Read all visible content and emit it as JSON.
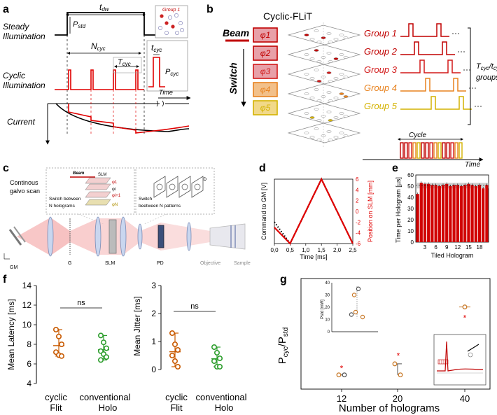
{
  "panels": {
    "a": {
      "letter": "a",
      "steady_label": [
        "Steady",
        "Illumination"
      ],
      "cyclic_label": [
        "Cyclic",
        "Illumination"
      ],
      "current_label": "Current",
      "t_dw": "t_dw",
      "p_std": "P_std",
      "n_cyc": "N_cyc",
      "t_cyc_big": "T_cyc",
      "t_cyc_small": "t_cyc",
      "p_cyc": "P_cyc",
      "time": "Time",
      "group1": "Group 1"
    },
    "b": {
      "letter": "b",
      "title": "Cyclic-FLiT",
      "beam": "Beam",
      "switch": "Switch",
      "phases": [
        "φ1",
        "φ2",
        "φ3",
        "φ4",
        "φ5"
      ],
      "groups": [
        "Group 1",
        "Group 2",
        "Group 3",
        "Group 4",
        "Group 5"
      ],
      "group_colors": [
        "#c00000",
        "#c00000",
        "#d21919",
        "#e8821e",
        "#d4b200"
      ],
      "bracket_label": [
        "T_cyc/t_cyc",
        "groups"
      ],
      "cycle": "Cycle",
      "time": "Time"
    },
    "c": {
      "letter": "c",
      "galvo": [
        "Continous",
        "galvo scan"
      ],
      "beam": "Beam",
      "slm": "SLM",
      "switch_holo": [
        "Switch between",
        "N holograms"
      ],
      "switch_pat": [
        "Switch",
        "beetween N patterns"
      ],
      "pd": "PD",
      "phi": [
        "φ1",
        "φi",
        "φi+1",
        "φN"
      ],
      "optics": [
        "GM",
        "G",
        "SLM",
        "PD",
        "Objective",
        "Sample"
      ]
    },
    "d": {
      "letter": "d",
      "ylabel_left": "Command to GM [V]",
      "ylabel_right": "Position on SLM [mm]",
      "xlabel": "Time [ms]",
      "x_ticks": [
        "0,0",
        "0,5",
        "1,0",
        "1,5",
        "2,0",
        "2,5"
      ],
      "y_ticks_right": [
        "6",
        "4",
        "2",
        "0",
        "-2",
        "-4",
        "-6"
      ]
    },
    "e": {
      "letter": "e",
      "ylabel": "Time per Hologram [µs]",
      "xlabel": "Tiled Hologram",
      "y_ticks": [
        "0",
        "10",
        "20",
        "30",
        "40",
        "50",
        "60"
      ],
      "x_ticks": [
        "3",
        "6",
        "9",
        "12",
        "15",
        "18"
      ]
    },
    "f": {
      "letter": "f",
      "left_ylabel": "Mean Latency [ms]",
      "right_ylabel": "Mean Jitter [ms]",
      "left_ticks": [
        "4",
        "6",
        "8",
        "10",
        "12",
        "14"
      ],
      "right_ticks": [
        "0",
        "1",
        "2",
        "3"
      ],
      "ns": "ns",
      "cat1": [
        "cyclic",
        "Flit"
      ],
      "cat2": [
        "conventional",
        "Holo"
      ]
    },
    "g": {
      "letter": "g",
      "ylabel": "P_cyc/P_std",
      "xlabel": "Number of holograms",
      "x_ticks": [
        "12",
        "20",
        "40"
      ],
      "inset_ylabel": "Pstd [mW]",
      "inset_ticks": [
        "0",
        "10",
        "20",
        "30",
        "40"
      ]
    }
  },
  "chart_data": [
    {
      "panel": "d",
      "type": "line",
      "xlabel": "Time [ms]",
      "ylabel": "Command to GM [V]",
      "y2label": "Position on SLM [mm]",
      "xlim": [
        0,
        2.5
      ],
      "ylim_right": [
        -6,
        6
      ],
      "series": [
        {
          "style": "dotted-black",
          "x": [
            0,
            0.5,
            1.5,
            2.5
          ],
          "y": [
            -2,
            -6,
            6,
            -6
          ]
        },
        {
          "style": "red",
          "x": [
            0,
            0.5,
            1.5,
            2.5
          ],
          "y": [
            -3,
            -6,
            6,
            -6
          ]
        }
      ]
    },
    {
      "panel": "e",
      "type": "bar",
      "xlabel": "Tiled Hologram",
      "ylabel": "Time per Hologram [µs]",
      "ylim": [
        0,
        60
      ],
      "categories": [
        1,
        2,
        3,
        4,
        5,
        6,
        7,
        8,
        9,
        10,
        11,
        12,
        13,
        14,
        15,
        16,
        17,
        18,
        19,
        20
      ],
      "values": [
        43,
        53,
        52,
        52,
        51,
        51,
        50,
        51,
        52,
        50,
        51,
        51,
        50,
        51,
        52,
        51,
        50,
        51,
        48,
        51
      ],
      "color": "#d00000"
    },
    {
      "panel": "f-left",
      "type": "scatter",
      "ylabel": "Mean Latency [ms]",
      "ylim": [
        4,
        14
      ],
      "categories": [
        "cyclic Flit",
        "conventional Holo"
      ],
      "series": [
        {
          "color": "#c85a00",
          "values": [
            9.5,
            8.8,
            8.0,
            7.2,
            6.9,
            6.8
          ]
        },
        {
          "color": "#2e9e2e",
          "values": [
            8.9,
            8.2,
            7.6,
            7.3,
            7.0,
            6.7,
            6.4
          ]
        }
      ]
    },
    {
      "panel": "f-right",
      "type": "scatter",
      "ylabel": "Mean Jitter [ms]",
      "ylim": [
        0,
        3
      ],
      "categories": [
        "cyclic Flit",
        "conventional Holo"
      ],
      "series": [
        {
          "color": "#c85a00",
          "values": [
            1.3,
            0.9,
            0.7,
            0.5,
            0.3,
            0.1
          ]
        },
        {
          "color": "#2e9e2e",
          "values": [
            0.8,
            0.6,
            0.4,
            0.3,
            0.1,
            0.1
          ]
        }
      ]
    },
    {
      "panel": "g",
      "type": "scatter",
      "xlabel": "Number of holograms",
      "ylabel": "P_cyc/P_std",
      "categories": [
        "12",
        "20",
        "40"
      ],
      "series": [
        {
          "marker": "circle",
          "values": [
            [
              2.9,
              2.9
            ],
            [
              3.6,
              2.9
            ],
            [
              7.2
            ]
          ]
        },
        {
          "marker": "star-red",
          "values": [
            3.3,
            4.1,
            6.5
          ]
        }
      ]
    }
  ]
}
